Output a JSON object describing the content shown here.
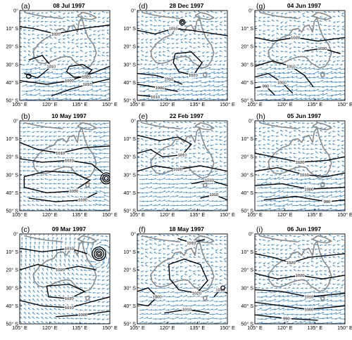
{
  "figure": {
    "title": "",
    "colors": {
      "coast": "#8a8a8a",
      "isobar": "#000000",
      "wind": "#3d8fd4",
      "frame": "#000000"
    },
    "x_ticks": [
      "105° E",
      "120° E",
      "135° E",
      "150° E"
    ],
    "y_ticks": [
      "0°",
      "10° S",
      "20° S",
      "30° S",
      "40° S",
      "50° S"
    ],
    "panels": [
      {
        "letter": "(a)",
        "date": "08 Jul 1997",
        "isobar_labels": [
          "1020",
          "1020",
          "1010",
          "1000",
          "1010"
        ],
        "winds": "strong-south"
      },
      {
        "letter": "(d)",
        "date": "28 Dec 1997",
        "isobar_labels": [
          "1010",
          "1020",
          "1010",
          "1000",
          "1010"
        ],
        "winds": "strong-south"
      },
      {
        "letter": "(g)",
        "date": "04 Jun 1997",
        "isobar_labels": [
          "1020",
          "1020",
          "1010",
          "1000",
          "990"
        ],
        "winds": "strong-south"
      },
      {
        "letter": "(b)",
        "date": "10 May 1997",
        "isobar_labels": [
          "1010",
          "1020",
          "1030",
          "1030",
          "1020",
          "1010"
        ],
        "winds": "east"
      },
      {
        "letter": "(e)",
        "date": "22 Feb 1997",
        "isobar_labels": [
          "1010",
          "1020",
          "1020",
          "1010"
        ],
        "winds": "moderate"
      },
      {
        "letter": "(h)",
        "date": "05 Jun 1997",
        "isobar_labels": [
          "1020",
          "1010",
          "1000",
          "990"
        ],
        "winds": "strong-south"
      },
      {
        "letter": "(c)",
        "date": "09 Mar 1997",
        "isobar_labels": [
          "1010",
          "1020",
          "1020",
          "1010",
          "1000"
        ],
        "winds": "cyclone"
      },
      {
        "letter": "(f)",
        "date": "18 May 1997",
        "isobar_labels": [
          "1010",
          "1020",
          "1000",
          "1010",
          "1010"
        ],
        "winds": "moderate"
      },
      {
        "letter": "(i)",
        "date": "06 Jun 1997",
        "isobar_labels": [
          "1020",
          "1020",
          "1010",
          "1000",
          "990"
        ],
        "winds": "strong-south"
      }
    ]
  }
}
